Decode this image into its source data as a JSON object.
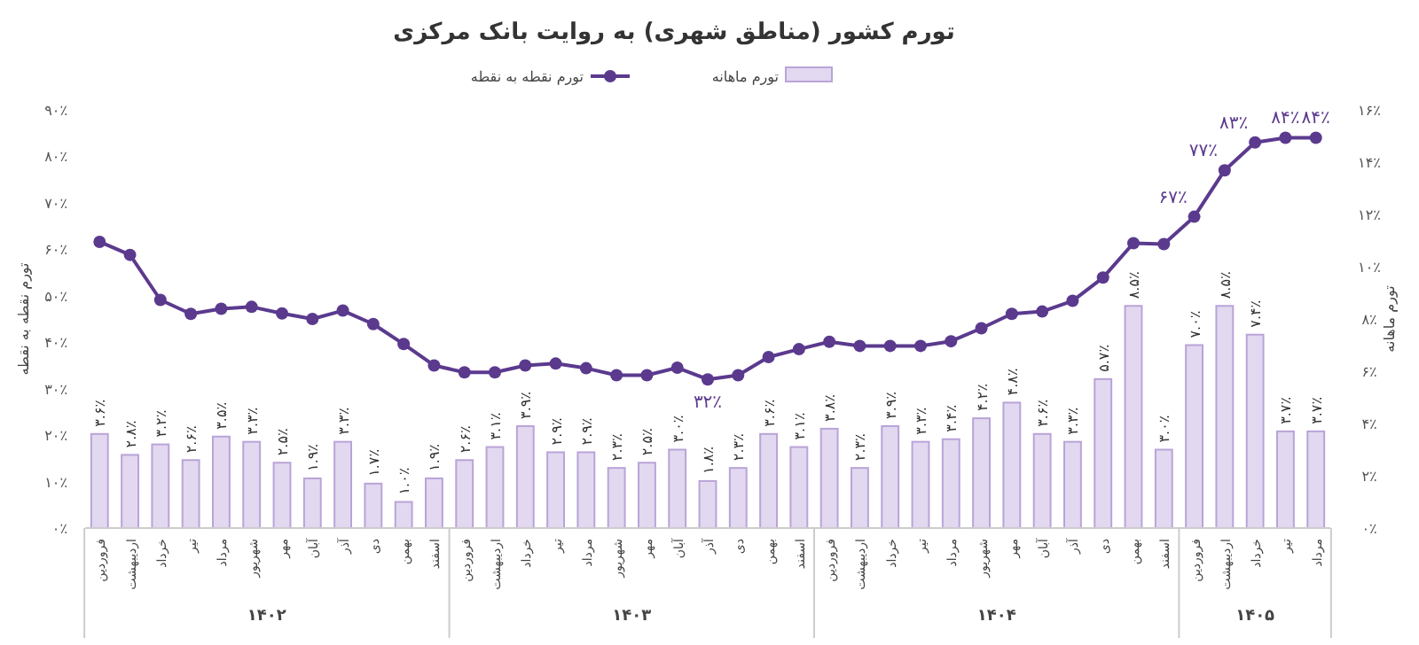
{
  "chart_data": {
    "type": "bar",
    "title": "تورم کشور (مناطق شهری) به روایت بانک مرکزی",
    "ylabel": "تورم نقطه به نقطه",
    "y2label": "تورم ماهانه",
    "categories": [
      "فروردین",
      "اردیبهشت",
      "خرداد",
      "تیر",
      "مرداد",
      "شهریور",
      "مهر",
      "آبان",
      "آذر",
      "دی",
      "بهمن",
      "اسفند",
      "فروردین",
      "اردیبهشت",
      "خرداد",
      "تیر",
      "مرداد",
      "شهریور",
      "مهر",
      "آبان",
      "آذر",
      "دی",
      "بهمن",
      "اسفند",
      "فروردین",
      "اردیبهشت",
      "خرداد",
      "تیر",
      "مرداد",
      "شهریور",
      "مهر",
      "آبان",
      "آذر",
      "دی",
      "بهمن",
      "اسفند",
      "فروردین",
      "اردیبهشت",
      "خرداد",
      "تیر",
      "مرداد"
    ],
    "annotations": [
      "۱۴۰۲",
      "۱۴۰۳",
      "۱۴۰۴",
      "۱۴۰۵"
    ],
    "series": [
      {
        "name": "تورم ماهانه",
        "axis": "y2",
        "color": "#e2d8f0",
        "values": [
          3.6,
          2.8,
          3.2,
          2.6,
          3.5,
          3.3,
          2.5,
          1.9,
          3.3,
          1.7,
          1.0,
          1.9,
          2.6,
          3.1,
          3.9,
          2.9,
          2.9,
          2.3,
          2.5,
          3.0,
          1.8,
          2.3,
          3.6,
          3.1,
          3.8,
          2.3,
          3.9,
          3.3,
          3.4,
          4.2,
          4.8,
          3.6,
          3.3,
          5.7,
          8.5,
          3.0,
          7.0,
          8.5,
          7.4,
          3.7,
          3.7
        ],
        "value_labels": [
          "۳.۶٪",
          "۲.۸٪",
          "۳.۲٪",
          "۲.۶٪",
          "۳.۵٪",
          "۳.۳٪",
          "۲.۵٪",
          "۱.۹٪",
          "۳.۳٪",
          "۱.۷٪",
          "۱.۰٪",
          "۱.۹٪",
          "۲.۶٪",
          "۳.۱٪",
          "۳.۹٪",
          "۲.۹٪",
          "۲.۹٪",
          "۲.۳٪",
          "۲.۵٪",
          "۳.۰٪",
          "۱.۸٪",
          "۲.۳٪",
          "۳.۶٪",
          "۳.۱٪",
          "۳.۸٪",
          "۲.۳٪",
          "۳.۹٪",
          "۳.۳٪",
          "۳.۴٪",
          "۴.۲٪",
          "۴.۸٪",
          "۳.۶٪",
          "۳.۳٪",
          "۵.۷٪",
          "۸.۵٪",
          "۳.۰٪",
          "۷.۰٪",
          "۸.۵٪",
          "۷.۴٪",
          "۳.۷٪",
          "۳.۷٪"
        ]
      },
      {
        "name": "تورم نقطه به نقطه",
        "type": "line",
        "color": "#5b3a8e",
        "marker": "circle",
        "values": [
          61.6,
          58.8,
          49.1,
          46.1,
          47.2,
          47.6,
          46.2,
          45.0,
          46.8,
          43.9,
          39.6,
          35.0,
          33.5,
          33.5,
          35.0,
          35.4,
          34.4,
          32.9,
          32.9,
          34.5,
          32,
          32.9,
          36.8,
          38.5,
          40.1,
          39.2,
          39.2,
          39.2,
          40.2,
          43.0,
          46.1,
          46.6,
          48.9,
          53.9,
          61.3,
          61.1,
          67,
          77,
          83,
          84,
          84
        ],
        "value_labels": [
          null,
          null,
          null,
          null,
          null,
          null,
          null,
          null,
          null,
          null,
          null,
          null,
          null,
          null,
          null,
          null,
          null,
          null,
          null,
          null,
          "۳۲٪",
          null,
          null,
          null,
          null,
          null,
          null,
          null,
          null,
          null,
          null,
          null,
          null,
          null,
          null,
          null,
          "۶۷٪",
          "۷۷٪",
          "۸۳٪",
          "۸۴٪",
          "۸۴٪"
        ]
      }
    ],
    "ylim": [
      0,
      90
    ],
    "yticks": [
      {
        "value": 0,
        "label": "۰٪"
      },
      {
        "value": 10,
        "label": "۱۰٪"
      },
      {
        "value": 20,
        "label": "۲۰٪"
      },
      {
        "value": 30,
        "label": "۳۰٪"
      },
      {
        "value": 40,
        "label": "۴۰٪"
      },
      {
        "value": 50,
        "label": "۵۰٪"
      },
      {
        "value": 60,
        "label": "۶۰٪"
      },
      {
        "value": 70,
        "label": "۷۰٪"
      },
      {
        "value": 80,
        "label": "۸۰٪"
      },
      {
        "value": 90,
        "label": "۹۰٪"
      }
    ],
    "y2lim": [
      0,
      16
    ],
    "y2ticks": [
      {
        "value": 0,
        "label": "۰٪"
      },
      {
        "value": 2,
        "label": "۲٪"
      },
      {
        "value": 4,
        "label": "۴٪"
      },
      {
        "value": 6,
        "label": "۶٪"
      },
      {
        "value": 8,
        "label": "۸٪"
      },
      {
        "value": 10,
        "label": "۱۰٪"
      },
      {
        "value": 12,
        "label": "۱۲٪"
      },
      {
        "value": 14,
        "label": "۱۴٪"
      },
      {
        "value": 16,
        "label": "۱۶٪"
      }
    ],
    "legend": "top",
    "grid": false
  }
}
